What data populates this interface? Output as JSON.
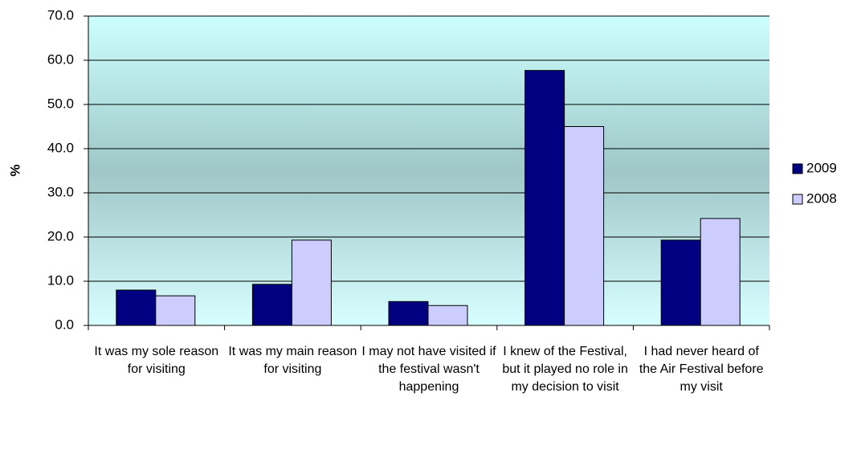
{
  "chart_data": {
    "type": "bar",
    "y_label": "%",
    "categories": [
      "It was my sole reason for visiting",
      "It was my main reason for visiting",
      "I may not have visited if the festival wasn't happening",
      "I knew of the Festival, but it played no role in my decision to visit",
      "I had never heard of the Air Festival before my visit"
    ],
    "series": [
      {
        "name": "2009",
        "color": "#000080",
        "values": [
          8.0,
          9.3,
          5.4,
          57.7,
          19.3
        ]
      },
      {
        "name": "2008",
        "color": "#ccccff",
        "values": [
          6.7,
          19.3,
          4.5,
          45.0,
          24.2
        ]
      }
    ],
    "ylim": [
      0,
      70
    ],
    "yticks": [
      {
        "value": 0,
        "label": "0.0"
      },
      {
        "value": 10,
        "label": "10.0"
      },
      {
        "value": 20,
        "label": "20.0"
      },
      {
        "value": 30,
        "label": "30.0"
      },
      {
        "value": 40,
        "label": "40.0"
      },
      {
        "value": 50,
        "label": "50.0"
      },
      {
        "value": 60,
        "label": "60.0"
      },
      {
        "value": 70,
        "label": "70.0"
      }
    ],
    "grid": true,
    "legend": "right"
  }
}
